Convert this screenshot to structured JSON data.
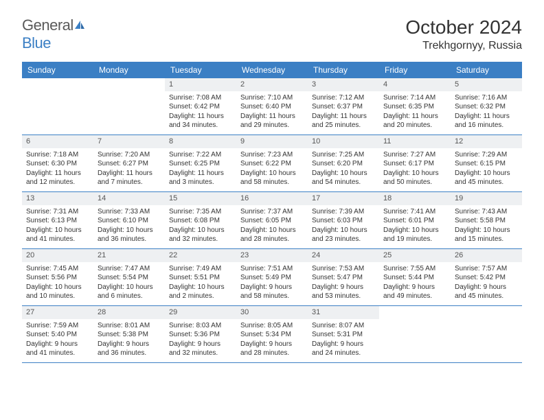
{
  "logo": {
    "word1": "General",
    "word2": "Blue"
  },
  "title": "October 2024",
  "location": "Trekhgornyy, Russia",
  "dayNames": [
    "Sunday",
    "Monday",
    "Tuesday",
    "Wednesday",
    "Thursday",
    "Friday",
    "Saturday"
  ],
  "colors": {
    "headerBar": "#3b7fc4",
    "dayNumBg": "#eef0f2",
    "text": "#333333",
    "background": "#ffffff"
  },
  "layout": {
    "columns": 7,
    "rows": 5,
    "firstDayColumn": 2
  },
  "days": [
    {
      "n": 1,
      "sunrise": "7:08 AM",
      "sunset": "6:42 PM",
      "daylight": "11 hours and 34 minutes."
    },
    {
      "n": 2,
      "sunrise": "7:10 AM",
      "sunset": "6:40 PM",
      "daylight": "11 hours and 29 minutes."
    },
    {
      "n": 3,
      "sunrise": "7:12 AM",
      "sunset": "6:37 PM",
      "daylight": "11 hours and 25 minutes."
    },
    {
      "n": 4,
      "sunrise": "7:14 AM",
      "sunset": "6:35 PM",
      "daylight": "11 hours and 20 minutes."
    },
    {
      "n": 5,
      "sunrise": "7:16 AM",
      "sunset": "6:32 PM",
      "daylight": "11 hours and 16 minutes."
    },
    {
      "n": 6,
      "sunrise": "7:18 AM",
      "sunset": "6:30 PM",
      "daylight": "11 hours and 12 minutes."
    },
    {
      "n": 7,
      "sunrise": "7:20 AM",
      "sunset": "6:27 PM",
      "daylight": "11 hours and 7 minutes."
    },
    {
      "n": 8,
      "sunrise": "7:22 AM",
      "sunset": "6:25 PM",
      "daylight": "11 hours and 3 minutes."
    },
    {
      "n": 9,
      "sunrise": "7:23 AM",
      "sunset": "6:22 PM",
      "daylight": "10 hours and 58 minutes."
    },
    {
      "n": 10,
      "sunrise": "7:25 AM",
      "sunset": "6:20 PM",
      "daylight": "10 hours and 54 minutes."
    },
    {
      "n": 11,
      "sunrise": "7:27 AM",
      "sunset": "6:17 PM",
      "daylight": "10 hours and 50 minutes."
    },
    {
      "n": 12,
      "sunrise": "7:29 AM",
      "sunset": "6:15 PM",
      "daylight": "10 hours and 45 minutes."
    },
    {
      "n": 13,
      "sunrise": "7:31 AM",
      "sunset": "6:13 PM",
      "daylight": "10 hours and 41 minutes."
    },
    {
      "n": 14,
      "sunrise": "7:33 AM",
      "sunset": "6:10 PM",
      "daylight": "10 hours and 36 minutes."
    },
    {
      "n": 15,
      "sunrise": "7:35 AM",
      "sunset": "6:08 PM",
      "daylight": "10 hours and 32 minutes."
    },
    {
      "n": 16,
      "sunrise": "7:37 AM",
      "sunset": "6:05 PM",
      "daylight": "10 hours and 28 minutes."
    },
    {
      "n": 17,
      "sunrise": "7:39 AM",
      "sunset": "6:03 PM",
      "daylight": "10 hours and 23 minutes."
    },
    {
      "n": 18,
      "sunrise": "7:41 AM",
      "sunset": "6:01 PM",
      "daylight": "10 hours and 19 minutes."
    },
    {
      "n": 19,
      "sunrise": "7:43 AM",
      "sunset": "5:58 PM",
      "daylight": "10 hours and 15 minutes."
    },
    {
      "n": 20,
      "sunrise": "7:45 AM",
      "sunset": "5:56 PM",
      "daylight": "10 hours and 10 minutes."
    },
    {
      "n": 21,
      "sunrise": "7:47 AM",
      "sunset": "5:54 PM",
      "daylight": "10 hours and 6 minutes."
    },
    {
      "n": 22,
      "sunrise": "7:49 AM",
      "sunset": "5:51 PM",
      "daylight": "10 hours and 2 minutes."
    },
    {
      "n": 23,
      "sunrise": "7:51 AM",
      "sunset": "5:49 PM",
      "daylight": "9 hours and 58 minutes."
    },
    {
      "n": 24,
      "sunrise": "7:53 AM",
      "sunset": "5:47 PM",
      "daylight": "9 hours and 53 minutes."
    },
    {
      "n": 25,
      "sunrise": "7:55 AM",
      "sunset": "5:44 PM",
      "daylight": "9 hours and 49 minutes."
    },
    {
      "n": 26,
      "sunrise": "7:57 AM",
      "sunset": "5:42 PM",
      "daylight": "9 hours and 45 minutes."
    },
    {
      "n": 27,
      "sunrise": "7:59 AM",
      "sunset": "5:40 PM",
      "daylight": "9 hours and 41 minutes."
    },
    {
      "n": 28,
      "sunrise": "8:01 AM",
      "sunset": "5:38 PM",
      "daylight": "9 hours and 36 minutes."
    },
    {
      "n": 29,
      "sunrise": "8:03 AM",
      "sunset": "5:36 PM",
      "daylight": "9 hours and 32 minutes."
    },
    {
      "n": 30,
      "sunrise": "8:05 AM",
      "sunset": "5:34 PM",
      "daylight": "9 hours and 28 minutes."
    },
    {
      "n": 31,
      "sunrise": "8:07 AM",
      "sunset": "5:31 PM",
      "daylight": "9 hours and 24 minutes."
    }
  ]
}
